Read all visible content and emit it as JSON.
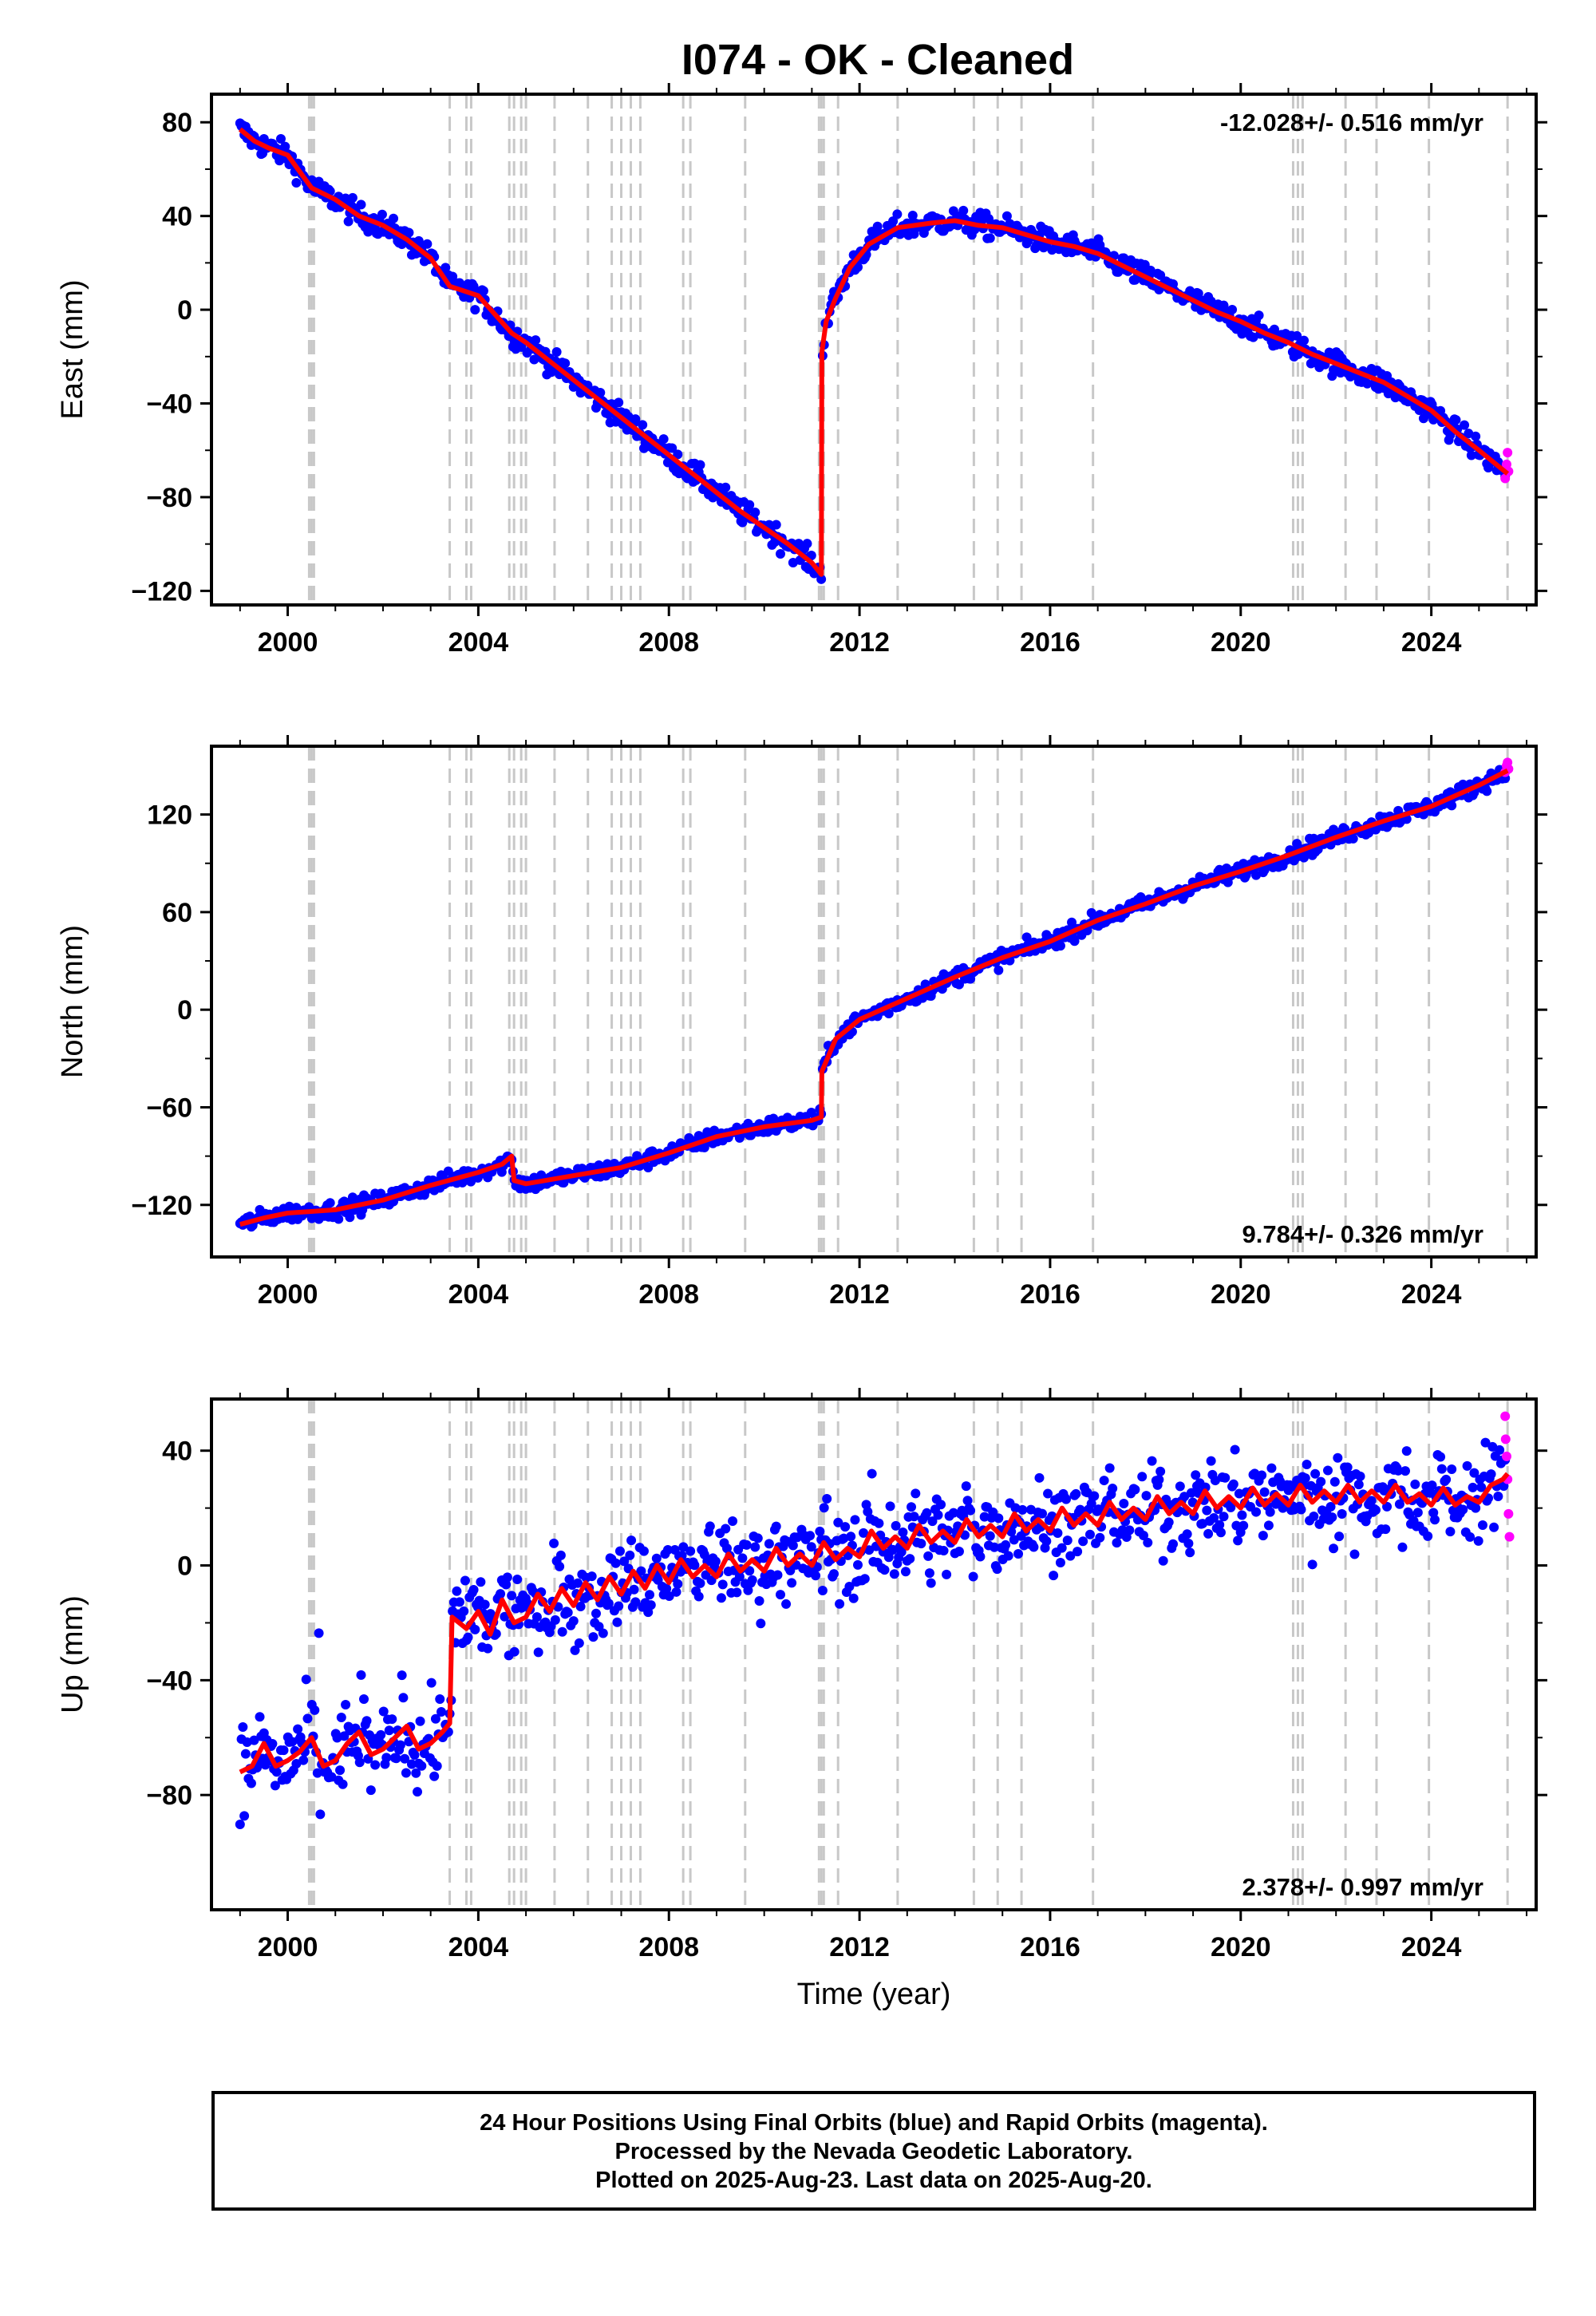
{
  "title": "I074  - OK - Cleaned",
  "footer": {
    "line1": "24 Hour Positions Using Final Orbits (blue) and Rapid Orbits (magenta).",
    "line2": "Processed by the Nevada Geodetic Laboratory.",
    "line3": "Plotted on 2025-Aug-23. Last data on 2025-Aug-20."
  },
  "colors": {
    "final_orbits": "#0000ff",
    "rapid_orbits": "#ff00ff",
    "model": "#ff0000",
    "event_lines": "#c8c8c8"
  },
  "chart_data": [
    {
      "type": "scatter",
      "ylabel": "East (mm)",
      "xlabel": "",
      "rate_text": "-12.028+/- 0.516 mm/yr",
      "xlim": [
        1998.4,
        2026.2
      ],
      "ylim": [
        -126,
        92
      ],
      "xticks": [
        2000,
        2004,
        2008,
        2012,
        2016,
        2020,
        2024
      ],
      "yticks": [
        80,
        40,
        0,
        -40,
        -80,
        -120
      ],
      "grid": false,
      "event_lines_x": [
        2000.45,
        2000.5,
        2000.55,
        2003.4,
        2003.75,
        2003.85,
        2004.65,
        2004.75,
        2004.9,
        2005.0,
        2005.6,
        2006.3,
        2006.8,
        2007.0,
        2007.2,
        2007.4,
        2008.3,
        2008.45,
        2009.6,
        2011.15,
        2011.2,
        2011.25,
        2011.55,
        2012.8,
        2014.4,
        2014.9,
        2015.4,
        2016.9,
        2021.1,
        2021.2,
        2021.3,
        2022.2,
        2022.85,
        2023.95,
        2025.6
      ],
      "model_series": {
        "name": "model",
        "x": [
          1999.0,
          1999.3,
          1999.6,
          2000.0,
          2000.5,
          2001.0,
          2001.5,
          2002.0,
          2002.5,
          2003.0,
          2003.4,
          2004.0,
          2004.7,
          2005.0,
          2005.5,
          2006.0,
          2006.5,
          2007.0,
          2007.5,
          2008.0,
          2008.5,
          2009.0,
          2009.5,
          2010.0,
          2010.5,
          2011.0,
          2011.2,
          2011.21,
          2011.3,
          2011.5,
          2011.8,
          2012.2,
          2012.8,
          2013.5,
          2014.0,
          2014.5,
          2015.0,
          2015.5,
          2016.0,
          2016.5,
          2017.0,
          2017.5,
          2018.0,
          2018.5,
          2019.0,
          2019.5,
          2020.0,
          2020.5,
          2021.0,
          2021.5,
          2022.0,
          2022.5,
          2023.0,
          2023.5,
          2024.0,
          2024.5,
          2025.0,
          2025.6
        ],
        "y": [
          77,
          72,
          69,
          66,
          52,
          47,
          40,
          36,
          30,
          22,
          10,
          6,
          -10,
          -14,
          -22,
          -30,
          -38,
          -46,
          -54,
          -62,
          -70,
          -78,
          -86,
          -93,
          -100,
          -108,
          -113,
          -18,
          -5,
          5,
          18,
          28,
          35,
          37,
          38,
          36,
          35,
          32,
          29,
          27,
          24,
          19,
          14,
          9,
          4,
          -1,
          -5,
          -10,
          -14,
          -19,
          -23,
          -27,
          -31,
          -37,
          -43,
          -52,
          -60,
          -70
        ]
      },
      "rapid_series": {
        "name": "rapid",
        "x": [
          2025.55,
          2025.58,
          2025.6,
          2025.62
        ],
        "y": [
          -72,
          -66,
          -61,
          -69
        ]
      }
    },
    {
      "type": "scatter",
      "ylabel": "North (mm)",
      "xlabel": "",
      "rate_text": "9.784+/- 0.326 mm/yr",
      "xlim": [
        1998.4,
        2026.2
      ],
      "ylim": [
        -152,
        162
      ],
      "xticks": [
        2000,
        2004,
        2008,
        2012,
        2016,
        2020,
        2024
      ],
      "yticks": [
        120,
        60,
        0,
        -60,
        -120
      ],
      "grid": false,
      "event_lines_x": [
        2000.45,
        2000.5,
        2000.55,
        2003.4,
        2003.75,
        2003.85,
        2004.65,
        2004.75,
        2004.9,
        2005.0,
        2005.6,
        2006.3,
        2006.8,
        2007.0,
        2007.2,
        2007.4,
        2008.3,
        2008.45,
        2009.6,
        2011.15,
        2011.2,
        2011.25,
        2011.55,
        2012.8,
        2014.4,
        2014.9,
        2015.4,
        2016.9,
        2021.1,
        2021.2,
        2021.3,
        2022.2,
        2022.85,
        2023.95,
        2025.6
      ],
      "model_series": {
        "name": "model",
        "x": [
          1999.0,
          1999.5,
          2000.0,
          2001.0,
          2002.0,
          2003.0,
          2004.0,
          2004.5,
          2004.7,
          2004.75,
          2005.0,
          2006.0,
          2007.0,
          2008.0,
          2009.0,
          2010.0,
          2011.0,
          2011.2,
          2011.21,
          2011.5,
          2012.0,
          2013.0,
          2014.0,
          2015.0,
          2016.0,
          2017.0,
          2018.0,
          2019.0,
          2020.0,
          2021.0,
          2022.0,
          2023.0,
          2024.0,
          2025.0,
          2025.6
        ],
        "y": [
          -132,
          -128,
          -125,
          -123,
          -117,
          -108,
          -100,
          -95,
          -90,
          -105,
          -107,
          -102,
          -97,
          -88,
          -78,
          -72,
          -68,
          -66,
          -38,
          -18,
          -6,
          7,
          20,
          32,
          42,
          55,
          65,
          76,
          85,
          95,
          106,
          116,
          125,
          138,
          147
        ]
      },
      "rapid_series": {
        "name": "rapid",
        "x": [
          2025.55,
          2025.58,
          2025.6,
          2025.62
        ],
        "y": [
          146,
          150,
          152,
          148
        ]
      }
    },
    {
      "type": "scatter",
      "ylabel": "Up (mm)",
      "xlabel": "Time (year)",
      "rate_text": "2.378+/- 0.997 mm/yr",
      "xlim": [
        1998.4,
        2026.2
      ],
      "ylim": [
        -120,
        58
      ],
      "xticks": [
        2000,
        2004,
        2008,
        2012,
        2016,
        2020,
        2024
      ],
      "yticks": [
        40,
        0,
        -40,
        -80
      ],
      "grid": false,
      "event_lines_x": [
        2000.45,
        2000.5,
        2000.55,
        2003.4,
        2003.75,
        2003.85,
        2004.65,
        2004.75,
        2004.9,
        2005.0,
        2005.6,
        2006.3,
        2006.8,
        2007.0,
        2007.2,
        2007.4,
        2008.3,
        2008.45,
        2009.6,
        2011.15,
        2011.2,
        2011.25,
        2011.55,
        2012.8,
        2014.4,
        2014.9,
        2015.4,
        2016.9,
        2021.1,
        2021.2,
        2021.3,
        2022.2,
        2022.85,
        2023.95,
        2025.6
      ],
      "model_series": {
        "name": "model",
        "x": [
          1999.0,
          1999.25,
          1999.5,
          1999.75,
          2000.0,
          2000.25,
          2000.5,
          2000.75,
          2001.0,
          2001.25,
          2001.5,
          2001.75,
          2002.0,
          2002.25,
          2002.5,
          2002.75,
          2003.0,
          2003.25,
          2003.4,
          2003.45,
          2003.75,
          2004.0,
          2004.25,
          2004.5,
          2004.75,
          2005.0,
          2005.25,
          2005.5,
          2005.75,
          2006.0,
          2006.25,
          2006.5,
          2006.75,
          2007.0,
          2007.25,
          2007.5,
          2007.75,
          2008.0,
          2008.25,
          2008.5,
          2008.75,
          2009.0,
          2009.25,
          2009.5,
          2009.75,
          2010.0,
          2010.25,
          2010.5,
          2010.75,
          2011.0,
          2011.25,
          2011.5,
          2011.75,
          2012.0,
          2012.25,
          2012.5,
          2012.75,
          2013.0,
          2013.25,
          2013.5,
          2013.75,
          2014.0,
          2014.25,
          2014.5,
          2014.75,
          2015.0,
          2015.25,
          2015.5,
          2015.75,
          2016.0,
          2016.25,
          2016.5,
          2016.75,
          2017.0,
          2017.25,
          2017.5,
          2017.75,
          2018.0,
          2018.25,
          2018.5,
          2018.75,
          2019.0,
          2019.25,
          2019.5,
          2019.75,
          2020.0,
          2020.25,
          2020.5,
          2020.75,
          2021.0,
          2021.25,
          2021.5,
          2021.75,
          2022.0,
          2022.25,
          2022.5,
          2022.75,
          2023.0,
          2023.25,
          2023.5,
          2023.75,
          2024.0,
          2024.25,
          2024.5,
          2024.75,
          2025.0,
          2025.25,
          2025.5,
          2025.6
        ],
        "y": [
          -72,
          -70,
          -62,
          -70,
          -68,
          -65,
          -60,
          -70,
          -68,
          -62,
          -58,
          -66,
          -64,
          -60,
          -56,
          -64,
          -62,
          -58,
          -55,
          -18,
          -22,
          -16,
          -24,
          -12,
          -20,
          -18,
          -10,
          -16,
          -8,
          -14,
          -6,
          -12,
          -4,
          -10,
          -2,
          -8,
          0,
          -6,
          2,
          -4,
          0,
          -4,
          4,
          -2,
          2,
          -2,
          6,
          0,
          4,
          0,
          8,
          2,
          6,
          3,
          12,
          6,
          10,
          6,
          14,
          8,
          12,
          8,
          16,
          10,
          14,
          10,
          18,
          12,
          16,
          12,
          20,
          14,
          18,
          14,
          22,
          16,
          20,
          16,
          24,
          18,
          22,
          18,
          26,
          20,
          24,
          20,
          27,
          21,
          25,
          21,
          28,
          22,
          26,
          22,
          28,
          22,
          26,
          22,
          28,
          22,
          25,
          21,
          27,
          21,
          24,
          22,
          28,
          30,
          32
        ]
      },
      "rapid_series": {
        "name": "rapid",
        "x": [
          2025.55,
          2025.56,
          2025.58,
          2025.6,
          2025.62,
          2025.64
        ],
        "y": [
          52,
          44,
          38,
          30,
          18,
          10
        ]
      }
    }
  ]
}
